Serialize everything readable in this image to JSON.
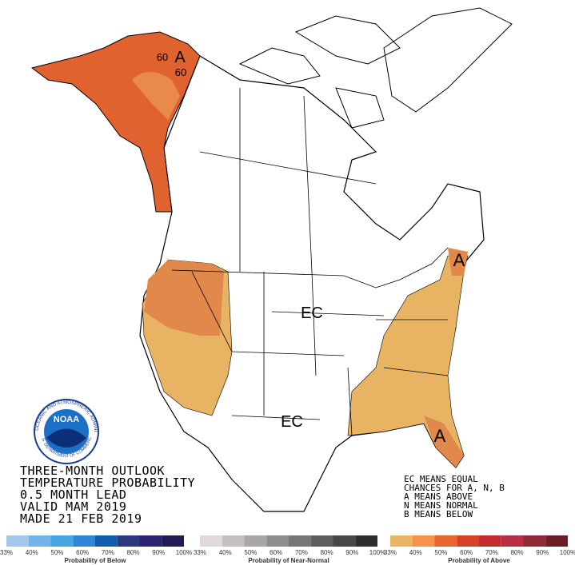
{
  "map_labels": [
    "60",
    "A",
    "60",
    "A",
    "EC",
    "EC",
    "A"
  ],
  "title_lines": [
    "THREE-MONTH OUTLOOK",
    "TEMPERATURE PROBABILITY",
    "0.5 MONTH LEAD",
    "VALID MAM 2019",
    "MADE 21 FEB 2019"
  ],
  "notes": [
    "EC MEANS EQUAL",
    "CHANCES FOR A, N, B",
    "A MEANS ABOVE",
    "N MEANS NORMAL",
    "B MEANS BELOW"
  ],
  "logo": {
    "name": "NOAA",
    "ring_top": "NATIONAL OCEANIC AND ATMOSPHERIC ADMINISTRATION",
    "ring_bottom": "U.S. DEPARTMENT OF COMMERCE"
  },
  "legends": [
    {
      "caption": "Probability of Below",
      "labels": [
        "33%",
        "40%",
        "50%",
        "60%",
        "70%",
        "80%",
        "90%",
        "100%"
      ],
      "colors": [
        "#a4c8ea",
        "#73b5e6",
        "#46a6e3",
        "#2f86d6",
        "#0e5cab",
        "#293a80",
        "#2b2470",
        "#201a55"
      ]
    },
    {
      "caption": "Probability of Near-Normal",
      "labels": [
        "33%",
        "40%",
        "50%",
        "60%",
        "70%",
        "80%",
        "90%",
        "100%"
      ],
      "colors": [
        "#e0d8dc",
        "#c6bfc1",
        "#a9a6a8",
        "#8e8c8c",
        "#777575",
        "#5e5e5e",
        "#474747",
        "#2e2e2e"
      ]
    },
    {
      "caption": "Probability of Above",
      "labels": [
        "33%",
        "40%",
        "50%",
        "60%",
        "70%",
        "80%",
        "90%",
        "100%"
      ],
      "colors": [
        "#e9b463",
        "#f7924a",
        "#e5662f",
        "#d64128",
        "#c52a2e",
        "#b82e45",
        "#8e2a35",
        "#6a1e25"
      ]
    }
  ]
}
